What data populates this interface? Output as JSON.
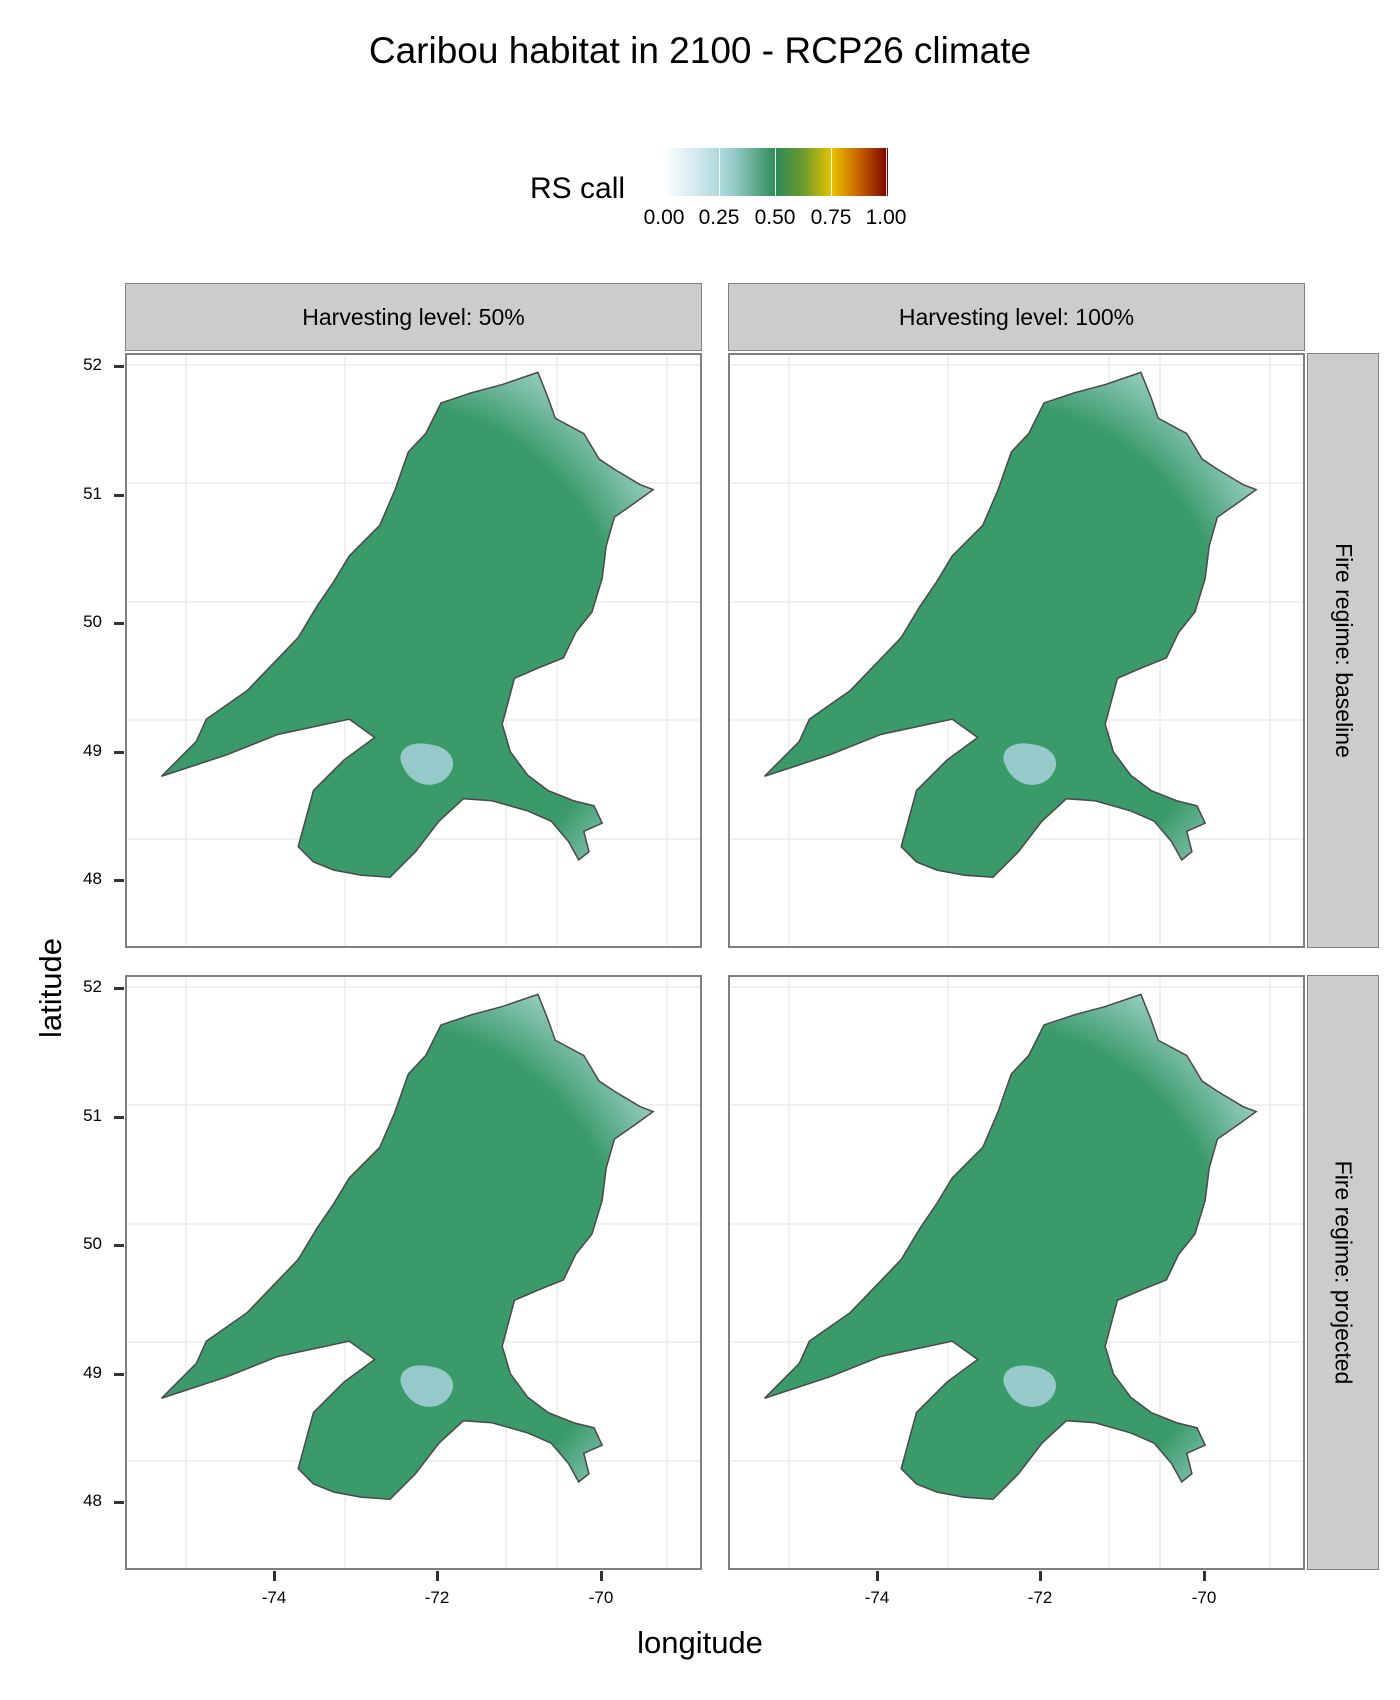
{
  "title": "Caribou habitat in 2100 - RCP26 climate",
  "legend": {
    "title": "RS call",
    "labels": [
      "0.00",
      "0.25",
      "0.50",
      "0.75",
      "1.00"
    ],
    "colors": [
      "#ffffff",
      "#cfe8ef",
      "#9ccfcf",
      "#2e8b57",
      "#6b9a2e",
      "#e6c300",
      "#c86400",
      "#7a0000"
    ]
  },
  "axes": {
    "xlabel": "longitude",
    "ylabel": "latitude",
    "x_ticks": [
      "-74",
      "-72",
      "-70"
    ],
    "y_ticks": [
      "52",
      "51",
      "50",
      "49",
      "48"
    ]
  },
  "facets": {
    "columns": [
      "Harvesting level: 50%",
      "Harvesting level: 100%"
    ],
    "rows": [
      "Fire regime: baseline",
      "Fire regime: projected"
    ]
  },
  "map_colors": {
    "lake": "#96c9c9",
    "land_low": "#bfe3e6",
    "land_mid": "#3a9a6a",
    "highlight": "#c9a400",
    "outline": "#4a4a4a"
  }
}
